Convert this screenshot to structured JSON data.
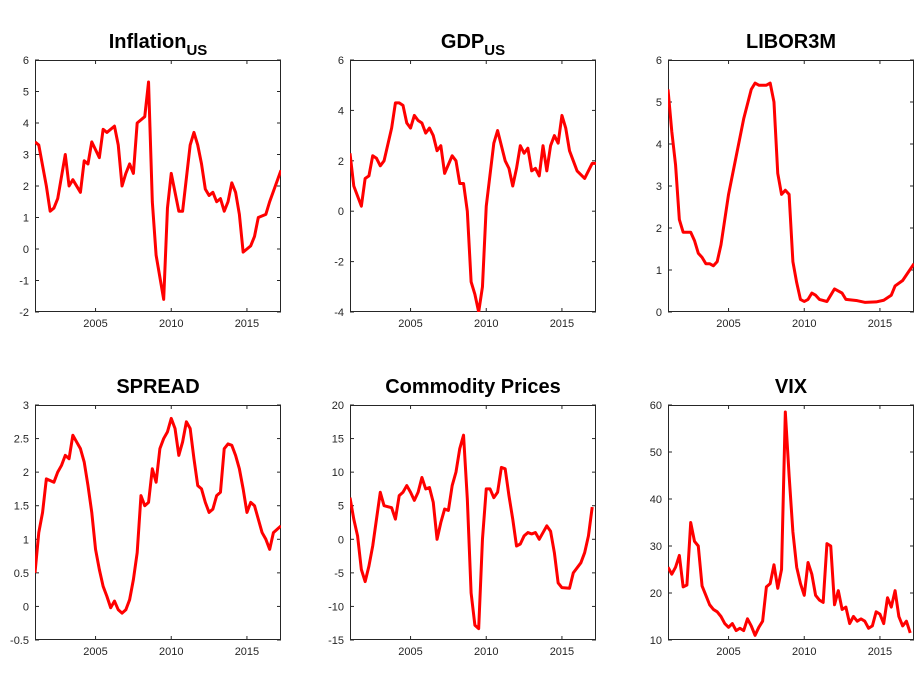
{
  "chart_data": [
    {
      "type": "line",
      "title": "Inflation",
      "title_subscript": "US",
      "x": [
        2001,
        2001.25,
        2001.75,
        2002,
        2002.25,
        2002.5,
        2003,
        2003.25,
        2003.5,
        2004,
        2004.25,
        2004.5,
        2004.75,
        2005.25,
        2005.5,
        2005.75,
        2006.25,
        2006.5,
        2006.75,
        2007,
        2007.25,
        2007.5,
        2007.75,
        2008.25,
        2008.5,
        2008.75,
        2009,
        2009.5,
        2009.75,
        2010,
        2010.5,
        2010.75,
        2011.25,
        2011.5,
        2011.75,
        2012,
        2012.25,
        2012.5,
        2012.75,
        2013,
        2013.25,
        2013.5,
        2013.75,
        2014,
        2014.25,
        2014.5,
        2014.75,
        2015.25,
        2015.5,
        2015.75,
        2016.25,
        2016.5,
        2017.25
      ],
      "series": [
        {
          "color": "#ff0000",
          "values": [
            3.4,
            3.3,
            2.0,
            1.2,
            1.3,
            1.6,
            3.0,
            2.0,
            2.2,
            1.8,
            2.8,
            2.7,
            3.4,
            2.9,
            3.8,
            3.7,
            3.9,
            3.3,
            2.0,
            2.4,
            2.7,
            2.4,
            4.0,
            4.2,
            5.3,
            1.5,
            -0.2,
            -1.6,
            1.3,
            2.4,
            1.2,
            1.2,
            3.3,
            3.7,
            3.3,
            2.7,
            1.9,
            1.7,
            1.8,
            1.5,
            1.6,
            1.2,
            1.5,
            2.1,
            1.8,
            1.1,
            -0.1,
            0.1,
            0.4,
            1.0,
            1.1,
            1.5,
            2.5
          ]
        }
      ],
      "xlim": [
        2001,
        2017.25
      ],
      "ylim": [
        -2,
        6
      ],
      "xticks": [
        2005,
        2010,
        2015
      ],
      "yticks": [
        -2,
        -1,
        0,
        1,
        2,
        3,
        4,
        5,
        6
      ]
    },
    {
      "type": "line",
      "title": "GDP",
      "title_subscript": "US",
      "x": [
        2001,
        2001.25,
        2001.75,
        2002,
        2002.25,
        2002.5,
        2002.75,
        2003,
        2003.25,
        2003.75,
        2004,
        2004.25,
        2004.5,
        2004.75,
        2005,
        2005.25,
        2005.5,
        2005.75,
        2006,
        2006.25,
        2006.5,
        2006.75,
        2007,
        2007.25,
        2007.75,
        2008,
        2008.25,
        2008.5,
        2008.75,
        2009,
        2009.25,
        2009.5,
        2009.75,
        2010,
        2010.5,
        2010.75,
        2011.25,
        2011.5,
        2011.75,
        2012,
        2012.25,
        2012.5,
        2012.75,
        2013,
        2013.25,
        2013.5,
        2013.75,
        2014,
        2014.25,
        2014.5,
        2014.75,
        2015,
        2015.25,
        2015.5,
        2015.75,
        2016,
        2016.5,
        2017,
        2017.25
      ],
      "series": [
        {
          "color": "#ff0000",
          "values": [
            2.3,
            1.0,
            0.2,
            1.3,
            1.4,
            2.2,
            2.1,
            1.8,
            2.0,
            3.3,
            4.3,
            4.3,
            4.2,
            3.5,
            3.3,
            3.8,
            3.6,
            3.5,
            3.1,
            3.3,
            3.0,
            2.4,
            2.6,
            1.5,
            2.2,
            2.0,
            1.1,
            1.1,
            0.0,
            -2.8,
            -3.3,
            -4.0,
            -3.0,
            0.2,
            2.7,
            3.2,
            2.0,
            1.7,
            1.0,
            1.7,
            2.6,
            2.3,
            2.5,
            1.6,
            1.7,
            1.4,
            2.6,
            1.6,
            2.6,
            3.0,
            2.7,
            3.8,
            3.3,
            2.4,
            2.0,
            1.6,
            1.3,
            1.9,
            1.9
          ]
        }
      ],
      "xlim": [
        2001,
        2017.25
      ],
      "ylim": [
        -4,
        6
      ],
      "xticks": [
        2005,
        2010,
        2015
      ],
      "yticks": [
        -4,
        -2,
        0,
        2,
        4,
        6
      ]
    },
    {
      "type": "line",
      "title": "LIBOR3M",
      "x": [
        2001,
        2001.25,
        2001.5,
        2001.75,
        2002,
        2002.5,
        2002.75,
        2003,
        2003.25,
        2003.5,
        2003.75,
        2004,
        2004.25,
        2004.5,
        2005,
        2005.5,
        2006,
        2006.5,
        2006.75,
        2007,
        2007.5,
        2007.75,
        2008,
        2008.25,
        2008.5,
        2008.75,
        2009,
        2009.25,
        2009.5,
        2009.75,
        2010,
        2010.25,
        2010.5,
        2010.75,
        2011,
        2011.5,
        2011.75,
        2012,
        2012.5,
        2012.75,
        2013.5,
        2014,
        2014.75,
        2015.25,
        2015.75,
        2016,
        2016.5,
        2017.25
      ],
      "series": [
        {
          "color": "#ff0000",
          "values": [
            5.3,
            4.3,
            3.5,
            2.2,
            1.9,
            1.9,
            1.7,
            1.4,
            1.3,
            1.15,
            1.15,
            1.1,
            1.2,
            1.6,
            2.8,
            3.7,
            4.6,
            5.3,
            5.45,
            5.4,
            5.4,
            5.45,
            5.0,
            3.3,
            2.8,
            2.9,
            2.8,
            1.2,
            0.7,
            0.3,
            0.25,
            0.3,
            0.45,
            0.4,
            0.3,
            0.25,
            0.4,
            0.55,
            0.45,
            0.3,
            0.27,
            0.23,
            0.24,
            0.28,
            0.4,
            0.62,
            0.75,
            1.15
          ]
        }
      ],
      "xlim": [
        2001,
        2017.25
      ],
      "ylim": [
        0,
        6
      ],
      "xticks": [
        2005,
        2010,
        2015
      ],
      "yticks": [
        0,
        1,
        2,
        3,
        4,
        5,
        6
      ]
    },
    {
      "type": "line",
      "title": "SPREAD",
      "x": [
        2001,
        2001.25,
        2001.5,
        2001.75,
        2002.25,
        2002.5,
        2002.75,
        2003,
        2003.25,
        2003.5,
        2003.75,
        2004,
        2004.25,
        2004.5,
        2004.75,
        2005,
        2005.25,
        2005.5,
        2005.75,
        2006,
        2006.25,
        2006.5,
        2006.75,
        2007,
        2007.25,
        2007.5,
        2007.75,
        2008,
        2008.25,
        2008.5,
        2008.75,
        2009,
        2009.25,
        2009.5,
        2009.75,
        2010,
        2010.25,
        2010.5,
        2010.75,
        2011,
        2011.25,
        2011.5,
        2011.75,
        2012,
        2012.25,
        2012.5,
        2012.75,
        2013,
        2013.25,
        2013.5,
        2013.75,
        2014,
        2014.25,
        2014.5,
        2014.75,
        2015,
        2015.25,
        2015.5,
        2015.75,
        2016,
        2016.25,
        2016.5,
        2016.75,
        2017.25
      ],
      "series": [
        {
          "color": "#ff0000",
          "values": [
            0.5,
            1.1,
            1.4,
            1.9,
            1.85,
            2.0,
            2.1,
            2.25,
            2.2,
            2.55,
            2.45,
            2.35,
            2.15,
            1.8,
            1.4,
            0.85,
            0.55,
            0.3,
            0.15,
            -0.02,
            0.08,
            -0.05,
            -0.1,
            -0.05,
            0.1,
            0.4,
            0.8,
            1.65,
            1.5,
            1.55,
            2.05,
            1.85,
            2.35,
            2.5,
            2.6,
            2.8,
            2.65,
            2.25,
            2.45,
            2.75,
            2.65,
            2.2,
            1.8,
            1.75,
            1.55,
            1.4,
            1.45,
            1.65,
            1.7,
            2.35,
            2.42,
            2.4,
            2.25,
            2.05,
            1.75,
            1.4,
            1.55,
            1.5,
            1.3,
            1.1,
            1.0,
            0.85,
            1.1,
            1.2
          ]
        }
      ],
      "xlim": [
        2001,
        2017.25
      ],
      "ylim": [
        -0.5,
        3
      ],
      "xticks": [
        2005,
        2010,
        2015
      ],
      "yticks": [
        -0.5,
        0,
        0.5,
        1,
        1.5,
        2,
        2.5,
        3
      ]
    },
    {
      "type": "line",
      "title": "Commodity Prices",
      "x": [
        2001,
        2001.25,
        2001.5,
        2001.75,
        2002,
        2002.25,
        2002.5,
        2002.75,
        2003,
        2003.25,
        2003.75,
        2004,
        2004.25,
        2004.5,
        2004.75,
        2005,
        2005.25,
        2005.5,
        2005.75,
        2006,
        2006.25,
        2006.5,
        2006.75,
        2007,
        2007.25,
        2007.5,
        2007.75,
        2008,
        2008.25,
        2008.5,
        2008.75,
        2009,
        2009.25,
        2009.5,
        2009.75,
        2010,
        2010.25,
        2010.5,
        2010.75,
        2011,
        2011.25,
        2011.5,
        2011.75,
        2012,
        2012.25,
        2012.5,
        2012.75,
        2013,
        2013.25,
        2013.5,
        2013.75,
        2014,
        2014.25,
        2014.5,
        2014.75,
        2015,
        2015.5,
        2015.75,
        2016.25,
        2016.5,
        2016.75,
        2017
      ],
      "series": [
        {
          "color": "#ff0000",
          "values": [
            6.2,
            3.0,
            0.5,
            -4.5,
            -6.3,
            -4,
            -1,
            3,
            7,
            5,
            4.7,
            3,
            6.5,
            7,
            8,
            7,
            5.8,
            7,
            9.2,
            7.5,
            7.7,
            5.5,
            0,
            2.5,
            4.5,
            4.3,
            8,
            10,
            13.5,
            15.5,
            6,
            -8,
            -12.8,
            -13.3,
            0,
            7.5,
            7.5,
            6.2,
            7,
            10.7,
            10.5,
            6.5,
            3,
            -1,
            -0.7,
            0.5,
            1,
            0.8,
            1,
            0,
            1,
            2,
            1.2,
            -2,
            -6.5,
            -7.2,
            -7.3,
            -5,
            -3.5,
            -2,
            0.5,
            4.8
          ]
        }
      ],
      "xlim": [
        2001,
        2017.25
      ],
      "ylim": [
        -15,
        20
      ],
      "xticks": [
        2005,
        2010,
        2015
      ],
      "yticks": [
        -15,
        -10,
        -5,
        0,
        5,
        10,
        15,
        20
      ]
    },
    {
      "type": "line",
      "title": "VIX",
      "x": [
        2001,
        2001.25,
        2001.5,
        2001.75,
        2002,
        2002.25,
        2002.5,
        2002.75,
        2003,
        2003.25,
        2003.5,
        2003.75,
        2004,
        2004.25,
        2004.5,
        2004.75,
        2005,
        2005.25,
        2005.5,
        2005.75,
        2006,
        2006.25,
        2006.5,
        2006.75,
        2007,
        2007.25,
        2007.5,
        2007.75,
        2008,
        2008.25,
        2008.5,
        2008.75,
        2009,
        2009.25,
        2009.5,
        2009.75,
        2010,
        2010.25,
        2010.5,
        2010.75,
        2011,
        2011.25,
        2011.5,
        2011.75,
        2012,
        2012.25,
        2012.5,
        2012.75,
        2013,
        2013.25,
        2013.5,
        2013.75,
        2014,
        2014.25,
        2014.5,
        2014.75,
        2015,
        2015.25,
        2015.5,
        2015.75,
        2016,
        2016.25,
        2016.5,
        2016.75,
        2017
      ],
      "series": [
        {
          "color": "#ff0000",
          "values": [
            25.5,
            24,
            25.5,
            28,
            21.3,
            21.7,
            35,
            31,
            30,
            21.5,
            19.5,
            17.5,
            16.5,
            16,
            15,
            13.5,
            12.7,
            13.5,
            12,
            12.5,
            12,
            14.5,
            13,
            11,
            12.7,
            14,
            21.3,
            22,
            26,
            21,
            25,
            58.5,
            45,
            33,
            25.5,
            22,
            19.5,
            26.5,
            24,
            19.5,
            18.5,
            18,
            30.5,
            30,
            17.5,
            20.5,
            16.5,
            17,
            13.5,
            15,
            14,
            14.5,
            14,
            12.5,
            13,
            16,
            15.5,
            13.5,
            19,
            17,
            20.5,
            15,
            13,
            14,
            11.5
          ]
        }
      ],
      "xlim": [
        2001,
        2017.25
      ],
      "ylim": [
        10,
        60
      ],
      "xticks": [
        2005,
        2010,
        2015
      ],
      "yticks": [
        10,
        20,
        30,
        40,
        50,
        60
      ]
    }
  ]
}
